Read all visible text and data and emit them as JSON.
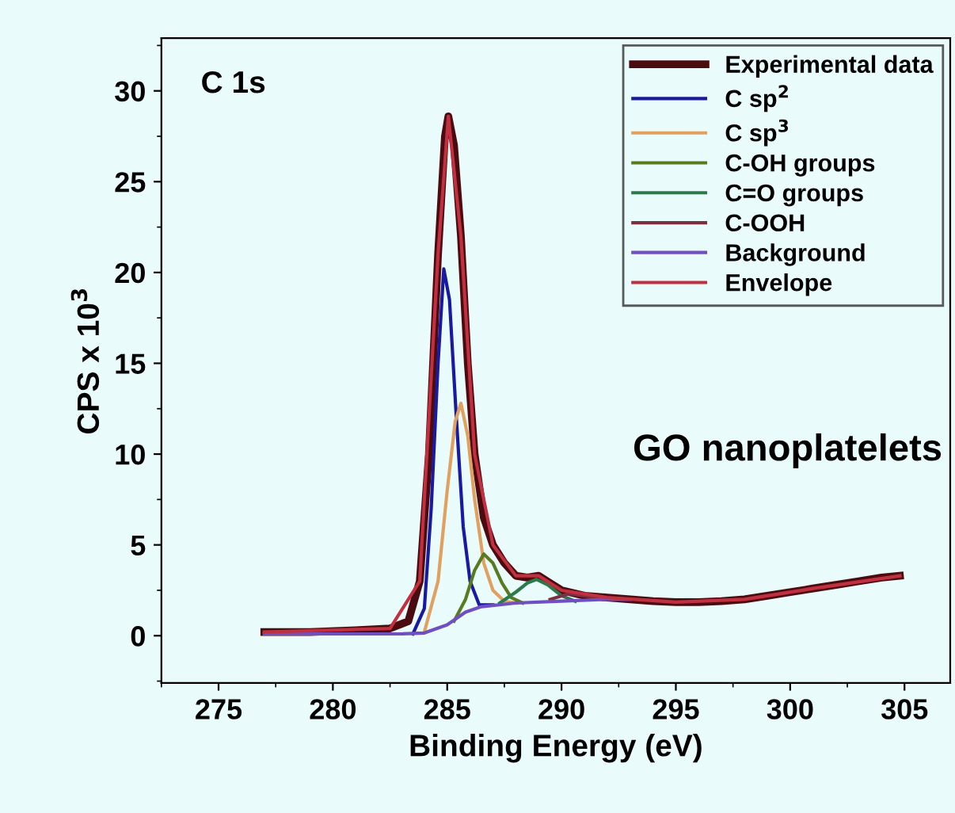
{
  "chart_data": {
    "type": "line",
    "xlabel": "Binding Energy (eV)",
    "ylabel": "CPS x 10$^{3}$",
    "annotations": [
      "C 1s",
      "GO nanoplatelets"
    ],
    "xlim": [
      272.5,
      307
    ],
    "xticks": [
      275,
      280,
      285,
      290,
      295,
      300,
      305
    ],
    "ylim": [
      -2.6,
      32.9
    ],
    "yticks": [
      0,
      5,
      10,
      15,
      20,
      25,
      30
    ],
    "grid": false,
    "legend": "top right",
    "marker": "none",
    "line_style": "solid",
    "series": [
      {
        "name": "Experimental data",
        "color": "#4a0c10",
        "x": [
          277,
          279,
          281,
          282.5,
          283.3,
          283.8,
          284.2,
          284.6,
          284.9,
          285.05,
          285.3,
          285.6,
          285.9,
          286.2,
          286.6,
          287,
          287.5,
          288,
          288.5,
          289,
          289.5,
          290,
          291,
          292,
          293,
          294,
          295,
          296,
          297,
          298,
          299,
          300,
          301,
          302,
          303,
          304,
          304.8
        ],
        "values": [
          0.2,
          0.2,
          0.3,
          0.4,
          0.8,
          3,
          10,
          21,
          27.5,
          28.6,
          27,
          22,
          15,
          10,
          6.5,
          5,
          4,
          3.3,
          3.2,
          3.3,
          2.9,
          2.5,
          2.2,
          2.1,
          2.0,
          1.9,
          1.85,
          1.85,
          1.9,
          2.0,
          2.2,
          2.4,
          2.6,
          2.8,
          3.0,
          3.2,
          3.3
        ]
      },
      {
        "name": "C sp$^{2}$",
        "color": "#1a1aa0",
        "x": [
          283.5,
          284,
          284.3,
          284.6,
          284.85,
          285.1,
          285.4,
          285.7,
          286,
          286.4,
          287
        ],
        "values": [
          0.1,
          1.5,
          7,
          15,
          20.2,
          18.5,
          12,
          6,
          3,
          1.7,
          1.7
        ]
      },
      {
        "name": "C sp$^{3}$",
        "color": "#e0a060",
        "x": [
          284,
          284.6,
          285,
          285.35,
          285.6,
          285.9,
          286.2,
          286.6,
          287,
          287.5,
          288
        ],
        "values": [
          0.2,
          3,
          8,
          11.8,
          12.8,
          11,
          7.5,
          4,
          2.5,
          1.9,
          1.8
        ]
      },
      {
        "name": "C-OH groups",
        "color": "#5a7a20",
        "x": [
          285.3,
          285.8,
          286.2,
          286.6,
          287,
          287.4,
          287.8,
          288.3
        ],
        "values": [
          0.8,
          2,
          3.6,
          4.5,
          4,
          2.9,
          2.1,
          1.8
        ]
      },
      {
        "name": "C=O groups",
        "color": "#2a7a4a",
        "x": [
          287.3,
          288,
          288.5,
          288.9,
          289.4,
          290,
          290.6
        ],
        "values": [
          1.8,
          2.4,
          2.9,
          3.1,
          2.8,
          2.2,
          1.9
        ]
      },
      {
        "name": "C-OOH",
        "color": "#7a3040",
        "x": [
          289.5,
          290.3,
          291,
          291.8
        ],
        "values": [
          2.0,
          2.3,
          2.2,
          2.0
        ]
      },
      {
        "name": "Background",
        "color": "#7050c0",
        "x": [
          277,
          283,
          284,
          285,
          285.8,
          286.5,
          288,
          290,
          292,
          293
        ],
        "values": [
          0.1,
          0.1,
          0.15,
          0.6,
          1.3,
          1.6,
          1.8,
          1.9,
          2.0,
          2.0
        ]
      },
      {
        "name": "Envelope",
        "color": "#c03040",
        "x": [
          277,
          282.5,
          283.8,
          284.6,
          285.05,
          285.6,
          286.2,
          287,
          288,
          289,
          290,
          292,
          295,
          298,
          301,
          304.8
        ],
        "values": [
          0.2,
          0.4,
          3,
          21,
          28.6,
          22,
          10,
          5,
          3.3,
          3.3,
          2.5,
          2.1,
          1.85,
          2.0,
          2.6,
          3.3
        ]
      }
    ]
  }
}
